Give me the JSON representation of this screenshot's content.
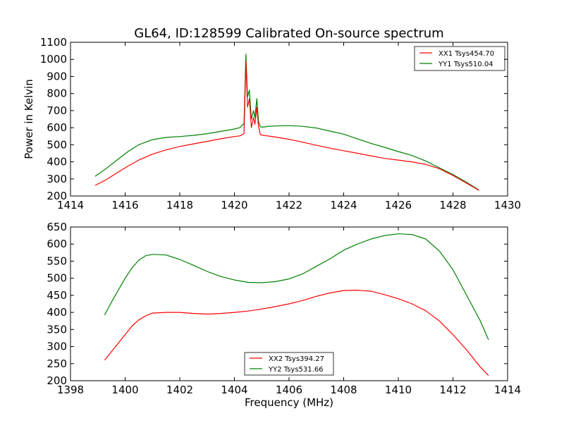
{
  "chart_data": [
    {
      "type": "line",
      "title": "GL64, ID:128599 Calibrated On-source spectrum",
      "xlabel": "",
      "ylabel": "Power in Kelvin",
      "xlim": [
        1414,
        1430
      ],
      "ylim": [
        200,
        1100
      ],
      "xticks": [
        1414,
        1416,
        1418,
        1420,
        1422,
        1424,
        1426,
        1428,
        1430
      ],
      "yticks": [
        200,
        300,
        400,
        500,
        600,
        700,
        800,
        900,
        1000,
        1100
      ],
      "grid": false,
      "legend": "top-right",
      "series": [
        {
          "name": "XX1 Tsys454.70",
          "color": "#ff0000",
          "x": [
            1414.9,
            1415.3,
            1415.7,
            1416.1,
            1416.5,
            1417.0,
            1417.5,
            1418.0,
            1418.5,
            1419.0,
            1419.5,
            1420.0,
            1420.2,
            1420.35,
            1420.42,
            1420.48,
            1420.55,
            1420.62,
            1420.7,
            1420.75,
            1420.82,
            1420.88,
            1420.95,
            1421.05,
            1421.2,
            1421.5,
            1422.0,
            1422.5,
            1423.0,
            1423.5,
            1424.0,
            1424.5,
            1425.0,
            1425.5,
            1426.0,
            1426.5,
            1427.0,
            1427.5,
            1428.0,
            1428.5,
            1428.95
          ],
          "y": [
            262,
            295,
            335,
            375,
            410,
            445,
            470,
            490,
            505,
            520,
            535,
            548,
            552,
            565,
            985,
            720,
            770,
            600,
            660,
            620,
            720,
            610,
            560,
            555,
            552,
            545,
            532,
            515,
            497,
            480,
            465,
            450,
            435,
            420,
            410,
            400,
            385,
            360,
            320,
            275,
            233
          ]
        },
        {
          "name": "YY1 Tsys510.04",
          "color": "#008000",
          "x": [
            1414.9,
            1415.3,
            1415.7,
            1416.1,
            1416.5,
            1417.0,
            1417.5,
            1418.0,
            1418.5,
            1419.0,
            1419.5,
            1420.0,
            1420.2,
            1420.35,
            1420.42,
            1420.48,
            1420.55,
            1420.62,
            1420.7,
            1420.75,
            1420.82,
            1420.88,
            1420.95,
            1421.05,
            1421.2,
            1421.5,
            1422.0,
            1422.5,
            1423.0,
            1423.5,
            1424.0,
            1424.5,
            1425.0,
            1425.5,
            1426.0,
            1426.5,
            1427.0,
            1427.5,
            1428.0,
            1428.5,
            1428.95
          ],
          "y": [
            315,
            360,
            410,
            460,
            500,
            530,
            543,
            548,
            555,
            565,
            578,
            592,
            600,
            625,
            1030,
            780,
            820,
            650,
            700,
            660,
            770,
            640,
            605,
            603,
            607,
            610,
            612,
            608,
            598,
            580,
            562,
            535,
            508,
            485,
            460,
            437,
            405,
            365,
            325,
            280,
            235
          ]
        }
      ]
    },
    {
      "type": "line",
      "title": "",
      "xlabel": "Frequency (MHz)",
      "ylabel": "",
      "xlim": [
        1398,
        1414
      ],
      "ylim": [
        200,
        650
      ],
      "xticks": [
        1398,
        1400,
        1402,
        1404,
        1406,
        1408,
        1410,
        1412,
        1414
      ],
      "yticks": [
        200,
        250,
        300,
        350,
        400,
        450,
        500,
        550,
        600,
        650
      ],
      "grid": false,
      "legend": "bottom-center",
      "series": [
        {
          "name": "XX2 Tsys394.27",
          "color": "#ff0000",
          "x": [
            1399.25,
            1399.5,
            1399.75,
            1400.0,
            1400.25,
            1400.5,
            1400.75,
            1401.0,
            1401.5,
            1402.0,
            1402.5,
            1403.0,
            1403.5,
            1404.0,
            1404.5,
            1405.0,
            1405.5,
            1406.0,
            1406.5,
            1407.0,
            1407.5,
            1408.0,
            1408.5,
            1409.0,
            1409.5,
            1410.0,
            1410.5,
            1411.0,
            1411.5,
            1412.0,
            1412.5,
            1413.0,
            1413.3
          ],
          "y": [
            260,
            285,
            310,
            335,
            360,
            378,
            390,
            398,
            400,
            400,
            397,
            395,
            397,
            400,
            404,
            410,
            417,
            425,
            435,
            447,
            457,
            464,
            465,
            462,
            452,
            440,
            425,
            405,
            375,
            335,
            290,
            240,
            215
          ]
        },
        {
          "name": "YY2 Tsys531.66",
          "color": "#008000",
          "x": [
            1399.25,
            1399.5,
            1399.75,
            1400.0,
            1400.25,
            1400.5,
            1400.75,
            1401.0,
            1401.5,
            1402.0,
            1402.5,
            1403.0,
            1403.5,
            1404.0,
            1404.5,
            1405.0,
            1405.5,
            1406.0,
            1406.5,
            1407.0,
            1407.5,
            1408.0,
            1408.5,
            1409.0,
            1409.5,
            1410.0,
            1410.5,
            1411.0,
            1411.5,
            1412.0,
            1412.5,
            1413.0,
            1413.3
          ],
          "y": [
            392,
            430,
            465,
            500,
            530,
            553,
            566,
            570,
            568,
            555,
            538,
            520,
            505,
            495,
            488,
            487,
            490,
            498,
            513,
            535,
            557,
            582,
            600,
            615,
            625,
            630,
            628,
            615,
            580,
            525,
            450,
            375,
            320
          ]
        }
      ]
    }
  ]
}
